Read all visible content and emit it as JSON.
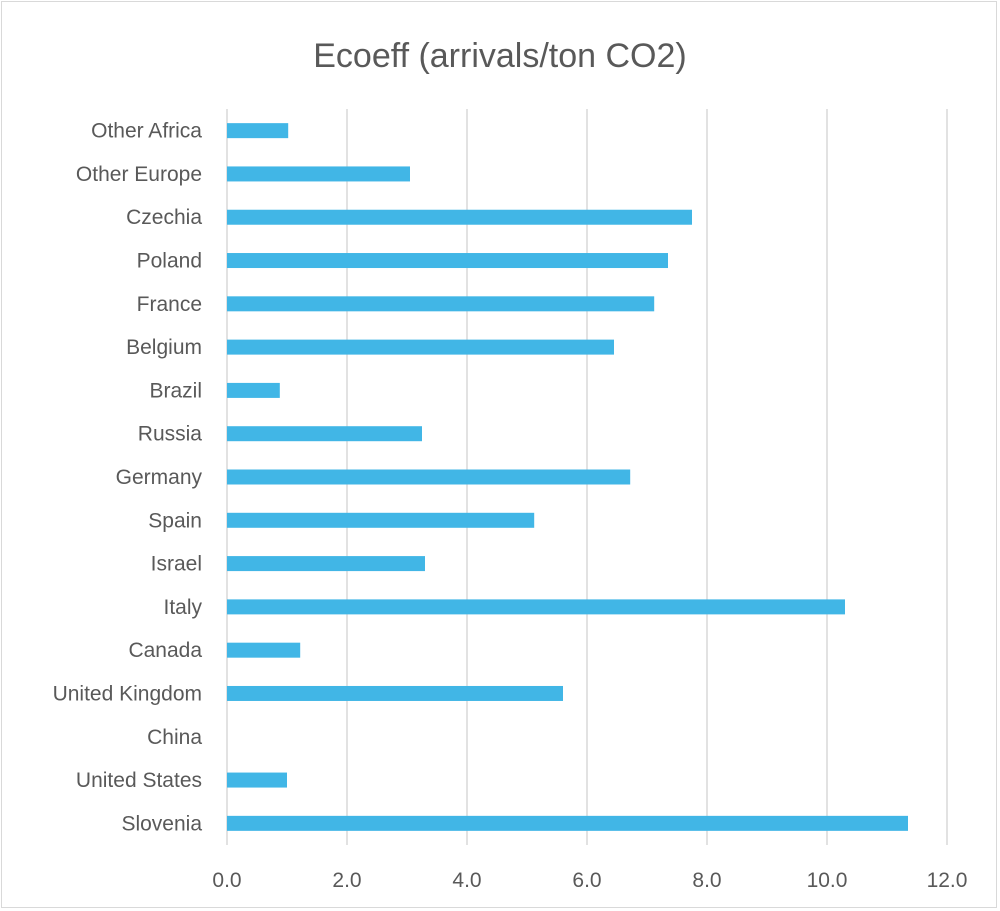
{
  "chart_data": {
    "type": "bar",
    "orientation": "horizontal",
    "title": "Ecoeff (arrivals/ton CO2)",
    "xlabel": "",
    "ylabel": "",
    "categories": [
      "Slovenia",
      "United States",
      "China",
      "United Kingdom",
      "Canada",
      "Italy",
      "Israel",
      "Spain",
      "Germany",
      "Russia",
      "Brazil",
      "Belgium",
      "France",
      "Poland",
      "Czechia",
      "Other Europe",
      "Other Africa"
    ],
    "values": [
      11.35,
      1.0,
      0.0,
      5.6,
      1.22,
      10.3,
      3.3,
      5.12,
      6.72,
      3.25,
      0.88,
      6.45,
      7.12,
      7.35,
      7.75,
      3.05,
      1.02
    ],
    "xlim": [
      0,
      12
    ],
    "ticks": [
      "0.0",
      "2.0",
      "4.0",
      "6.0",
      "8.0",
      "10.0",
      "12.0"
    ],
    "grid": true,
    "bar_color": "#41b6e6",
    "grid_color": "#d9d9d9",
    "legend": "none"
  }
}
